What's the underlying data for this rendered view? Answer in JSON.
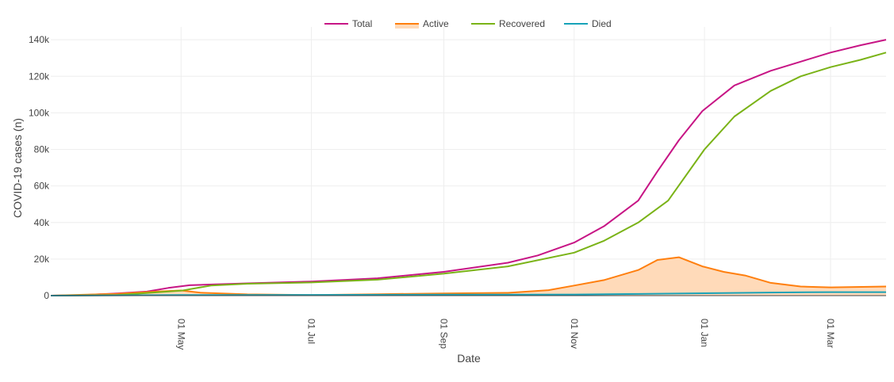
{
  "chart_data": {
    "type": "line",
    "title": "",
    "xlabel": "Date",
    "ylabel": "COVID-19 cases (n)",
    "x_range": [
      "2020-03-01",
      "2021-03-27"
    ],
    "ylim": [
      0,
      147000
    ],
    "grid": true,
    "legend_position": "top-center",
    "x_ticks": [
      {
        "date": "2020-05-01",
        "label": "01 May"
      },
      {
        "date": "2020-07-01",
        "label": "01 Jul"
      },
      {
        "date": "2020-09-01",
        "label": "01 Sep"
      },
      {
        "date": "2020-11-01",
        "label": "01 Nov"
      },
      {
        "date": "2021-01-01",
        "label": "01 Jan"
      },
      {
        "date": "2021-03-01",
        "label": "01 Mar"
      }
    ],
    "y_ticks": [
      {
        "value": 0,
        "label": "0"
      },
      {
        "value": 20000,
        "label": "20k"
      },
      {
        "value": 40000,
        "label": "40k"
      },
      {
        "value": 60000,
        "label": "60k"
      },
      {
        "value": 80000,
        "label": "80k"
      },
      {
        "value": 100000,
        "label": "100k"
      },
      {
        "value": 120000,
        "label": "120k"
      },
      {
        "value": 140000,
        "label": "140k"
      }
    ],
    "series": [
      {
        "name": "Total",
        "color": "#c71585",
        "fill": false,
        "points": [
          [
            "2020-03-01",
            0
          ],
          [
            "2020-03-15",
            200
          ],
          [
            "2020-04-01",
            1200
          ],
          [
            "2020-04-15",
            2200
          ],
          [
            "2020-04-25",
            4200
          ],
          [
            "2020-05-05",
            5700
          ],
          [
            "2020-06-01",
            6700
          ],
          [
            "2020-07-01",
            7700
          ],
          [
            "2020-08-01",
            9500
          ],
          [
            "2020-09-01",
            13000
          ],
          [
            "2020-10-01",
            18000
          ],
          [
            "2020-10-15",
            22000
          ],
          [
            "2020-11-01",
            29000
          ],
          [
            "2020-11-15",
            38000
          ],
          [
            "2020-12-01",
            52000
          ],
          [
            "2020-12-10",
            68000
          ],
          [
            "2020-12-20",
            85000
          ],
          [
            "2020-12-31",
            101000
          ],
          [
            "2021-01-15",
            115000
          ],
          [
            "2021-02-01",
            123000
          ],
          [
            "2021-02-15",
            128000
          ],
          [
            "2021-03-01",
            133000
          ],
          [
            "2021-03-15",
            137000
          ],
          [
            "2021-03-27",
            140000
          ]
        ]
      },
      {
        "name": "Active",
        "color": "#ff7f0e",
        "fill": true,
        "fill_color": "#ffdab9",
        "points": [
          [
            "2020-03-01",
            0
          ],
          [
            "2020-04-01",
            1000
          ],
          [
            "2020-04-20",
            2300
          ],
          [
            "2020-05-01",
            2800
          ],
          [
            "2020-05-10",
            1600
          ],
          [
            "2020-06-01",
            700
          ],
          [
            "2020-07-01",
            300
          ],
          [
            "2020-08-01",
            800
          ],
          [
            "2020-09-01",
            1200
          ],
          [
            "2020-10-01",
            1500
          ],
          [
            "2020-10-20",
            3000
          ],
          [
            "2020-11-01",
            5500
          ],
          [
            "2020-11-15",
            8500
          ],
          [
            "2020-12-01",
            14000
          ],
          [
            "2020-12-10",
            19500
          ],
          [
            "2020-12-20",
            21000
          ],
          [
            "2020-12-31",
            16000
          ],
          [
            "2021-01-10",
            13000
          ],
          [
            "2021-01-20",
            11000
          ],
          [
            "2021-02-01",
            7000
          ],
          [
            "2021-02-15",
            5000
          ],
          [
            "2021-03-01",
            4500
          ],
          [
            "2021-03-27",
            5000
          ]
        ]
      },
      {
        "name": "Recovered",
        "color": "#7ab317",
        "fill": false,
        "points": [
          [
            "2020-03-01",
            0
          ],
          [
            "2020-04-01",
            300
          ],
          [
            "2020-05-01",
            2700
          ],
          [
            "2020-05-15",
            5500
          ],
          [
            "2020-06-01",
            6500
          ],
          [
            "2020-07-01",
            7200
          ],
          [
            "2020-08-01",
            8700
          ],
          [
            "2020-09-01",
            12000
          ],
          [
            "2020-10-01",
            16000
          ],
          [
            "2020-11-01",
            23500
          ],
          [
            "2020-11-15",
            30000
          ],
          [
            "2020-12-01",
            40000
          ],
          [
            "2020-12-15",
            52000
          ],
          [
            "2021-01-01",
            80000
          ],
          [
            "2021-01-15",
            98000
          ],
          [
            "2021-02-01",
            112000
          ],
          [
            "2021-02-15",
            120000
          ],
          [
            "2021-03-01",
            125000
          ],
          [
            "2021-03-15",
            129000
          ],
          [
            "2021-03-27",
            133000
          ]
        ]
      },
      {
        "name": "Died",
        "color": "#17a2b8",
        "fill": false,
        "points": [
          [
            "2020-03-01",
            0
          ],
          [
            "2020-05-01",
            300
          ],
          [
            "2020-07-01",
            400
          ],
          [
            "2020-09-01",
            500
          ],
          [
            "2020-11-01",
            600
          ],
          [
            "2020-12-01",
            900
          ],
          [
            "2021-01-01",
            1300
          ],
          [
            "2021-02-01",
            1700
          ],
          [
            "2021-03-01",
            1900
          ],
          [
            "2021-03-27",
            1900
          ]
        ]
      }
    ]
  }
}
